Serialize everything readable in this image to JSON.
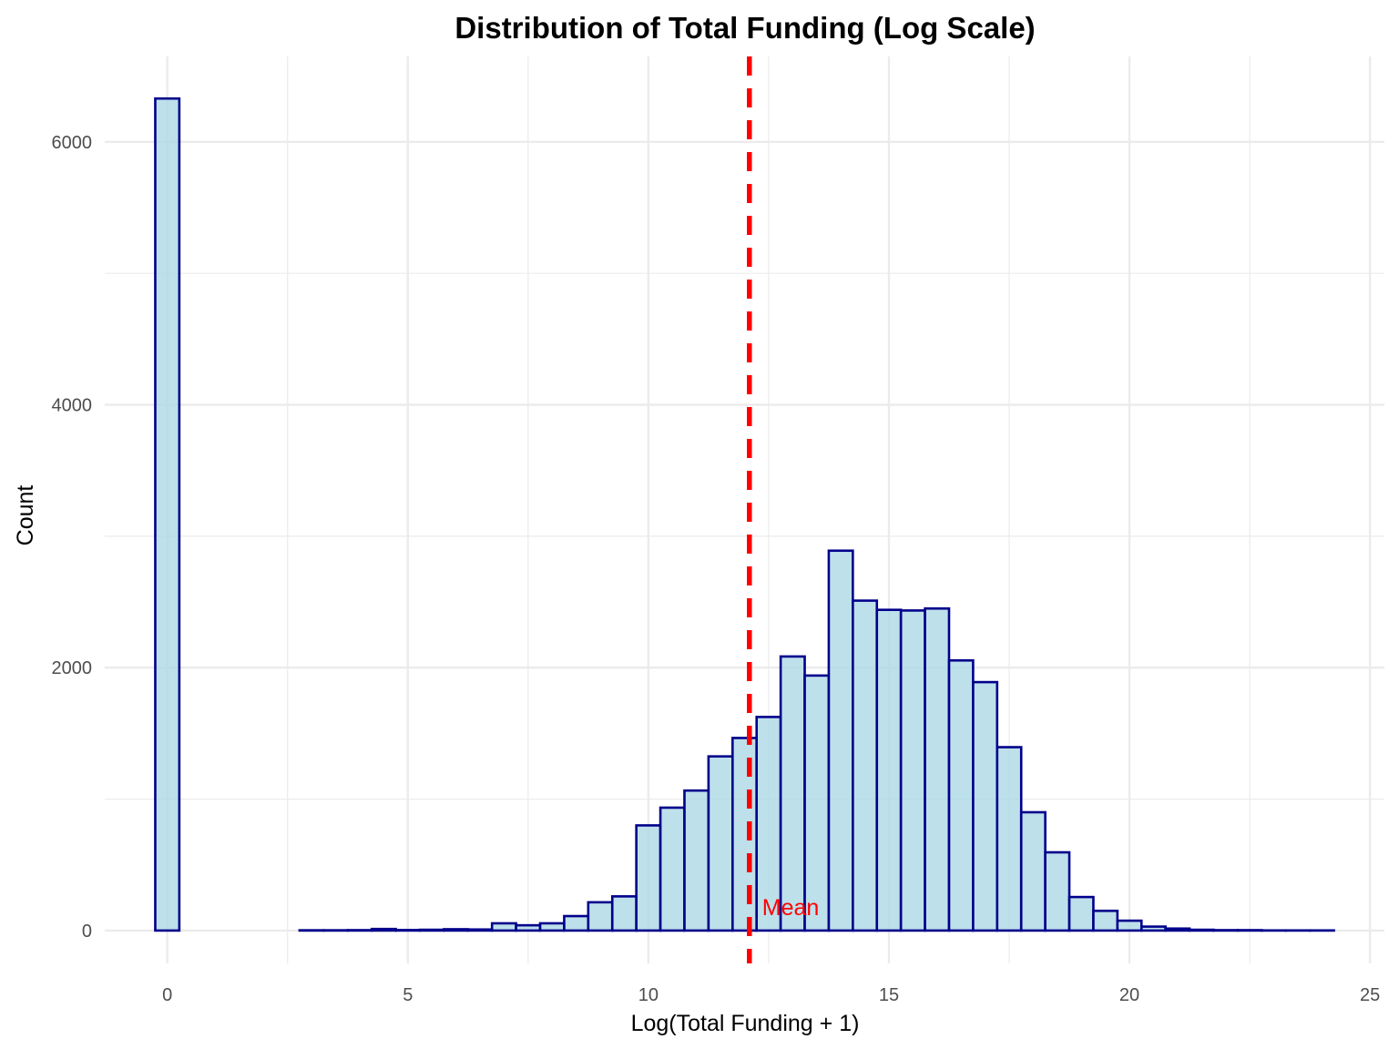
{
  "chart_data": {
    "type": "bar",
    "subtype": "histogram",
    "title": "Distribution of Total Funding (Log Scale)",
    "xlabel": "Log(Total Funding + 1)",
    "ylabel": "Count",
    "xlim": [
      -1.3,
      25.3
    ],
    "ylim": [
      -250,
      6650
    ],
    "x_ticks": [
      0,
      5,
      10,
      15,
      20,
      25
    ],
    "x_tick_labels": [
      "0",
      "5",
      "10",
      "15",
      "20",
      "25"
    ],
    "y_ticks": [
      0,
      2000,
      4000,
      6000
    ],
    "y_tick_labels": [
      "0",
      "2000",
      "4000",
      "6000"
    ],
    "x_minor_ticks": [
      2.5,
      7.5,
      12.5,
      17.5,
      22.5
    ],
    "y_minor_ticks": [
      1000,
      3000,
      5000
    ],
    "grid": true,
    "bin_width": 0.5,
    "bin_centers": [
      0,
      0.5,
      1,
      1.5,
      2,
      2.5,
      3,
      3.5,
      4,
      4.5,
      5,
      5.5,
      6,
      6.5,
      7,
      7.5,
      8,
      8.5,
      9,
      9.5,
      10,
      10.5,
      11,
      11.5,
      12,
      12.5,
      13,
      13.5,
      14,
      14.5,
      15,
      15.5,
      16,
      16.5,
      17,
      17.5,
      18,
      18.5,
      19,
      19.5,
      20,
      20.5,
      21,
      21.5,
      22,
      22.5,
      23,
      23.5,
      24
    ],
    "values": [
      6330,
      0,
      0,
      0,
      0,
      0,
      2,
      2,
      3,
      12,
      4,
      6,
      10,
      8,
      55,
      40,
      55,
      110,
      215,
      260,
      800,
      935,
      1065,
      1325,
      1465,
      1625,
      2085,
      1940,
      2890,
      2510,
      2440,
      2435,
      2450,
      2055,
      1890,
      1395,
      900,
      595,
      255,
      150,
      75,
      30,
      15,
      6,
      3,
      3,
      1,
      1,
      1
    ],
    "mean_line": {
      "x": 12.1,
      "label": "Mean",
      "color": "#ff0000",
      "style": "dashed"
    },
    "bar_fill": "#add8e6",
    "bar_stroke": "#00008b",
    "grid_color": "#ebebeb"
  }
}
